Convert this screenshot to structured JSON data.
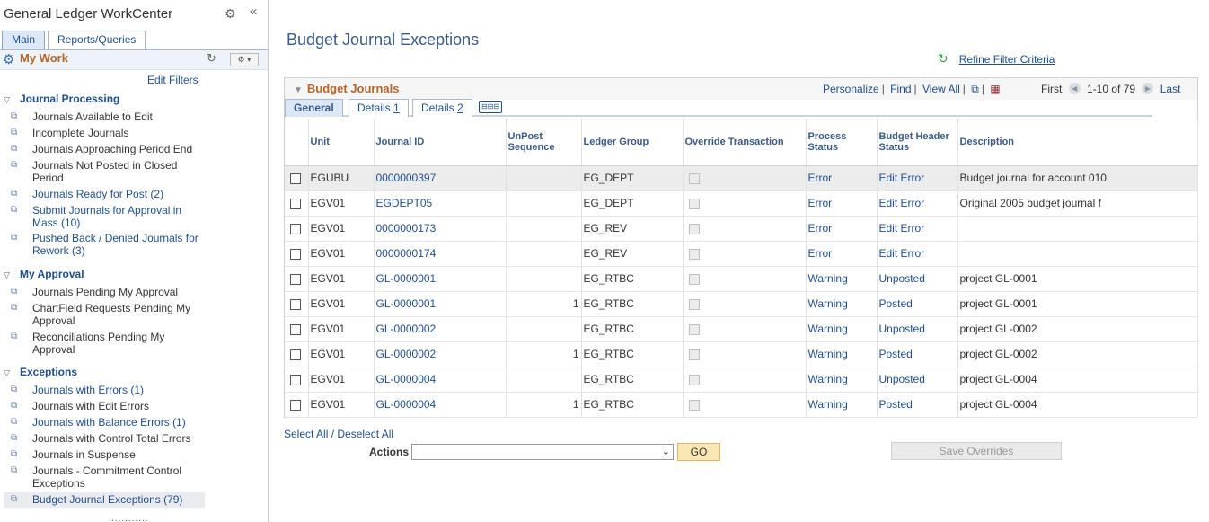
{
  "workcenter": {
    "title": "General Ledger WorkCenter",
    "tabs": [
      {
        "label": "Main"
      },
      {
        "label": "Reports/Queries"
      }
    ],
    "my_work_title": "My Work",
    "edit_filters": "Edit Filters",
    "sections": [
      {
        "title": "Journal Processing",
        "items": [
          {
            "label": "Journals Available to Edit"
          },
          {
            "label": "Incomplete Journals"
          },
          {
            "label": "Journals Approaching Period End"
          },
          {
            "label": "Journals Not Posted in Closed Period"
          },
          {
            "label": "Journals Ready for Post (2)"
          },
          {
            "label": "Submit Journals for Approval in Mass (10)"
          },
          {
            "label": "Pushed Back / Denied Journals for Rework (3)"
          }
        ]
      },
      {
        "title": "My Approval",
        "items": [
          {
            "label": "Journals Pending My Approval"
          },
          {
            "label": "ChartField Requests Pending My Approval"
          },
          {
            "label": "Reconciliations Pending My Approval"
          }
        ]
      },
      {
        "title": "Exceptions",
        "items": [
          {
            "label": "Journals with Errors (1)"
          },
          {
            "label": "Journals with Edit Errors"
          },
          {
            "label": "Journals with Balance Errors (1)"
          },
          {
            "label": "Journals with Control Total Errors"
          },
          {
            "label": "Journals in Suspense"
          },
          {
            "label": "Journals - Commitment Control Exceptions"
          },
          {
            "label": "Budget Journal Exceptions (79)"
          }
        ]
      }
    ],
    "more": "..........."
  },
  "page": {
    "title": "Budget Journal Exceptions",
    "refine_link": "Refine Filter Criteria"
  },
  "grid": {
    "title": "Budget Journals",
    "tools": {
      "personalize": "Personalize",
      "find": "Find",
      "view_all": "View All"
    },
    "nav": {
      "first": "First",
      "range": "1-10 of 79",
      "last": "Last"
    },
    "tabs": [
      {
        "label": "General"
      },
      {
        "label": "Details 1"
      },
      {
        "label": "Details 2"
      }
    ],
    "columns": [
      "Unit",
      "Journal ID",
      "UnPost Sequence",
      "Ledger Group",
      "Override Transaction",
      "Process Status",
      "Budget Header Status",
      "Description"
    ],
    "rows": [
      {
        "unit": "EGUBU",
        "journal_id": "0000000397",
        "seq": "",
        "ledger": "EG_DEPT",
        "process": "Error",
        "header": "Edit Error",
        "desc": "Budget journal for account 010"
      },
      {
        "unit": "EGV01",
        "journal_id": "EGDEPT05",
        "seq": "",
        "ledger": "EG_DEPT",
        "process": "Error",
        "header": "Edit Error",
        "desc": "Original 2005 budget journal f"
      },
      {
        "unit": "EGV01",
        "journal_id": "0000000173",
        "seq": "",
        "ledger": "EG_REV",
        "process": "Error",
        "header": "Edit Error",
        "desc": ""
      },
      {
        "unit": "EGV01",
        "journal_id": "0000000174",
        "seq": "",
        "ledger": "EG_REV",
        "process": "Error",
        "header": "Edit Error",
        "desc": ""
      },
      {
        "unit": "EGV01",
        "journal_id": "GL-0000001",
        "seq": "",
        "ledger": "EG_RTBC",
        "process": "Warning",
        "header": "Unposted",
        "desc": "project GL-0001"
      },
      {
        "unit": "EGV01",
        "journal_id": "GL-0000001",
        "seq": "1",
        "ledger": "EG_RTBC",
        "process": "Warning",
        "header": "Posted",
        "desc": "project GL-0001"
      },
      {
        "unit": "EGV01",
        "journal_id": "GL-0000002",
        "seq": "",
        "ledger": "EG_RTBC",
        "process": "Warning",
        "header": "Unposted",
        "desc": "project GL-0002"
      },
      {
        "unit": "EGV01",
        "journal_id": "GL-0000002",
        "seq": "1",
        "ledger": "EG_RTBC",
        "process": "Warning",
        "header": "Posted",
        "desc": "project GL-0002"
      },
      {
        "unit": "EGV01",
        "journal_id": "GL-0000004",
        "seq": "",
        "ledger": "EG_RTBC",
        "process": "Warning",
        "header": "Unposted",
        "desc": "project GL-0004"
      },
      {
        "unit": "EGV01",
        "journal_id": "GL-0000004",
        "seq": "1",
        "ledger": "EG_RTBC",
        "process": "Warning",
        "header": "Posted",
        "desc": "project GL-0004"
      }
    ]
  },
  "footer": {
    "select_all": "Select All / Deselect All",
    "actions_label": "Actions",
    "actions_value": "",
    "go": "GO",
    "save_overrides": "Save Overrides"
  },
  "colors": {
    "accent_orange": "#b5652a",
    "link_blue": "#1f4e8c",
    "title_blue": "#3a5a87"
  }
}
